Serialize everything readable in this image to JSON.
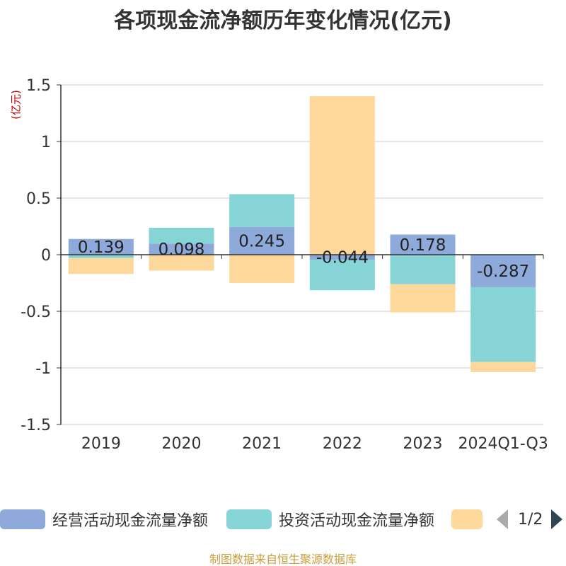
{
  "title": "各项现金流净额历年变化情况(亿元)",
  "unit_label": "(亿元)",
  "source": "制图数据来自恒生聚源数据库",
  "legend": {
    "items": [
      {
        "label": "经营活动现金流量净额",
        "color": "#8eaadb"
      },
      {
        "label": "投资活动现金流量净额",
        "color": "#86d4d6"
      },
      {
        "label": "",
        "color": "#fdd89a"
      }
    ],
    "page": "1/2"
  },
  "chart_data": {
    "type": "bar",
    "stacked": true,
    "categories": [
      "2019",
      "2020",
      "2021",
      "2022",
      "2023",
      "2024Q1-Q3"
    ],
    "series": [
      {
        "name": "经营活动现金流量净额",
        "color": "#8eaadb",
        "values": [
          0.139,
          0.098,
          0.245,
          -0.044,
          0.178,
          -0.287
        ],
        "labels": [
          "0.139",
          "0.098",
          "0.245",
          "-0.044",
          "0.178",
          "-0.287"
        ]
      },
      {
        "name": "投资活动现金流量净额",
        "color": "#86d4d6",
        "values": [
          -0.03,
          0.14,
          0.29,
          -0.27,
          -0.26,
          -0.66
        ]
      },
      {
        "name": "",
        "color": "#fdd89a",
        "values": [
          -0.14,
          -0.14,
          -0.25,
          1.4,
          -0.25,
          -0.09
        ]
      }
    ],
    "yticks": [
      "1.5",
      "1",
      "0.5",
      "0",
      "-0.5",
      "-1",
      "-1.5"
    ],
    "ylim": [
      -1.5,
      1.5
    ],
    "grid": true,
    "legend_position": "bottom"
  }
}
